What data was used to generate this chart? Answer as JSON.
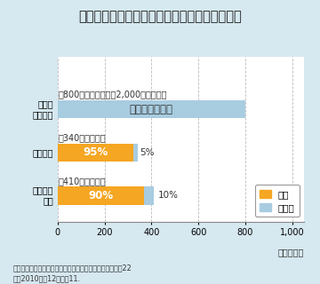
{
  "title": "木質バイオマスの発生量と利用の現況（推計）",
  "categories": [
    "建設発生\n木材",
    "工場残材",
    "未利用\n間伐材等"
  ],
  "bar_labels_above": [
    "約410万トン発生",
    "約340万トン発生",
    "約800万トン発生（約2,000㎥相当））"
  ],
  "utilized": [
    369,
    323,
    0
  ],
  "unutilized": [
    41,
    17,
    800
  ],
  "utilized_pct": [
    "90%",
    "95%",
    ""
  ],
  "unutilized_pct": [
    "10%",
    "5%",
    "ほとんど未利用"
  ],
  "utilized_color": "#F5A623",
  "unutilized_color": "#A8CCE0",
  "xlim": [
    0,
    1050
  ],
  "xticks": [
    0,
    200,
    400,
    600,
    800,
    1000
  ],
  "xlabel": "（万トン）",
  "legend_labels": [
    "利用",
    "未利用"
  ],
  "bg_color": "#D6E8F0",
  "plot_bg_color": "#FFFFFF",
  "source_text": "資料：農林水産省「バイオマス活用推進基本計画」（平成22\n　（2010）年12月）：11.",
  "title_fontsize": 10.5,
  "label_fontsize": 7,
  "tick_fontsize": 7,
  "legend_fontsize": 7.5,
  "bar_height": 0.42
}
